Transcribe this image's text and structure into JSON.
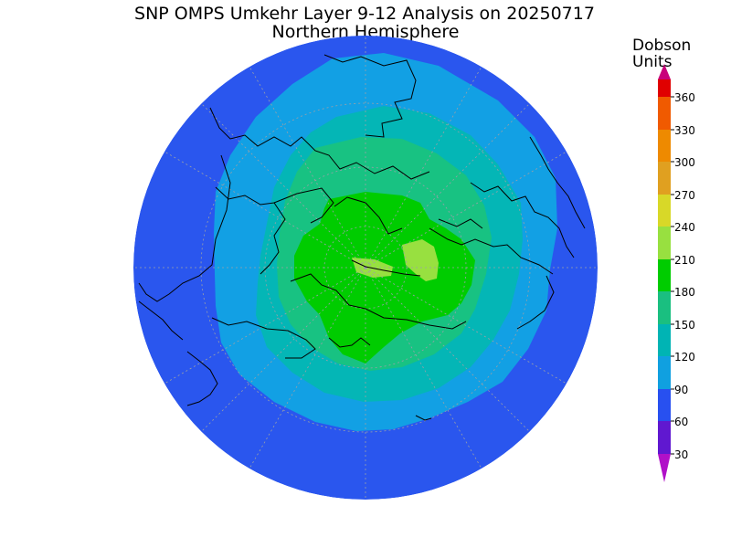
{
  "title": "SNP OMPS Umkehr Layer 9-12 Analysis on 20250717",
  "subtitle": "Northern Hemisphere",
  "colorbar": {
    "title_line1": "Dobson",
    "title_line2": "Units",
    "labels": [
      "360",
      "330",
      "300",
      "270",
      "240",
      "210",
      "180",
      "150",
      "120",
      "90",
      "60",
      "30"
    ],
    "colors": {
      "above": "#c8007a",
      "360": "#e00000",
      "330": "#f05a00",
      "300": "#ee8a00",
      "270": "#e0a020",
      "240": "#d8d828",
      "210": "#98e040",
      "180": "#00cc00",
      "150": "#1abf80",
      "120": "#00b4b4",
      "90": "#10a0e0",
      "60": "#2850f0",
      "30": "#6018d0",
      "below": "#b010c8"
    }
  },
  "map_colors": {
    "outer": "#2a56ee",
    "band90": "#12a0e4",
    "band120": "#04b6b6",
    "band150": "#18c282",
    "band180": "#00cc00",
    "band210": "#98e040"
  }
}
